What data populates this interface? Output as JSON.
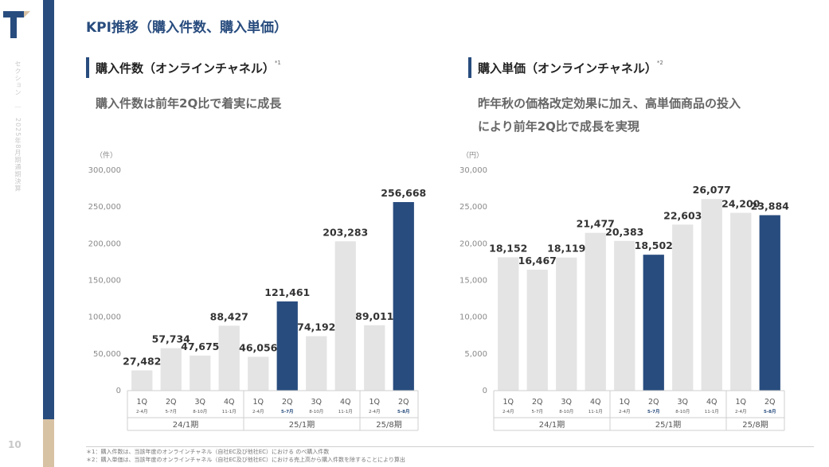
{
  "page": {
    "title": "KPI推移（購入件数、購入単価）",
    "vertical_label": "セクション　｜　2025年8月期通期決算",
    "page_number": "10"
  },
  "sections": [
    {
      "title": "購入件数（オンラインチャネル）",
      "note": "*1",
      "subtitle_lines": [
        "購入件数は前年2Q比で着実に成長"
      ]
    },
    {
      "title": "購入単価（オンラインチャネル）",
      "note": "*2",
      "subtitle_lines": [
        "昨年秋の価格改定効果に加え、高単価商品の投入",
        "により前年2Q比で成長を実現"
      ]
    }
  ],
  "footnotes": [
    "＊1：購入件数は、当該年度のオンラインチャネル（自社EC及び他社EC）における のべ購入件数",
    "＊2：購入単価は、当該年度のオンラインチャネル（自社EC及び他社EC）における売上高から購入件数を除することにより算出"
  ],
  "colors": {
    "highlight": "#284c7e",
    "normal": "#e4e4e4",
    "accent_tan": "#d8c2a4"
  },
  "chart_data": [
    {
      "type": "bar",
      "unit_label": "（件）",
      "ylim": [
        0,
        300000
      ],
      "yticks": [
        "0",
        "50,000",
        "100,000",
        "150,000",
        "200,000",
        "250,000",
        "300,000"
      ],
      "categories": [
        "1Q",
        "2Q",
        "3Q",
        "4Q",
        "1Q",
        "2Q",
        "3Q",
        "4Q",
        "1Q",
        "2Q"
      ],
      "category_months": [
        "2-4月",
        "5-7月",
        "8-10月",
        "11-1月",
        "2-4月",
        "5-7月",
        "8-10月",
        "11-1月",
        "2-4月",
        "5-8月"
      ],
      "values": [
        27482,
        57734,
        47675,
        88427,
        46056,
        121461,
        74192,
        203283,
        89011,
        256668
      ],
      "value_labels": [
        "27,482",
        "57,734",
        "47,675",
        "88,427",
        "46,056",
        "121,461",
        "74,192",
        "203,283",
        "89,011",
        "256,668"
      ],
      "highlight": [
        false,
        false,
        false,
        false,
        false,
        true,
        false,
        false,
        false,
        true
      ],
      "periods": [
        {
          "label": "24/1期",
          "count": 4
        },
        {
          "label": "25/1期",
          "count": 4
        },
        {
          "label": "25/8期",
          "count": 2
        }
      ]
    },
    {
      "type": "bar",
      "unit_label": "（円）",
      "ylim": [
        0,
        30000
      ],
      "yticks": [
        "0",
        "5,000",
        "10,000",
        "15,000",
        "20,000",
        "25,000",
        "30,000"
      ],
      "categories": [
        "1Q",
        "2Q",
        "3Q",
        "4Q",
        "1Q",
        "2Q",
        "3Q",
        "4Q",
        "1Q",
        "2Q"
      ],
      "category_months": [
        "2-4月",
        "5-7月",
        "8-10月",
        "11-1月",
        "2-4月",
        "5-7月",
        "8-10月",
        "11-1月",
        "2-4月",
        "5-8月"
      ],
      "values": [
        18152,
        16467,
        18119,
        21477,
        20383,
        18502,
        22603,
        26077,
        24200,
        23884
      ],
      "value_labels": [
        "18,152",
        "16,467",
        "18,119",
        "21,477",
        "20,383",
        "18,502",
        "22,603",
        "26,077",
        "24,200",
        "23,884"
      ],
      "highlight": [
        false,
        false,
        false,
        false,
        false,
        true,
        false,
        false,
        false,
        true
      ],
      "periods": [
        {
          "label": "24/1期",
          "count": 4
        },
        {
          "label": "25/1期",
          "count": 4
        },
        {
          "label": "25/8期",
          "count": 2
        }
      ]
    }
  ]
}
